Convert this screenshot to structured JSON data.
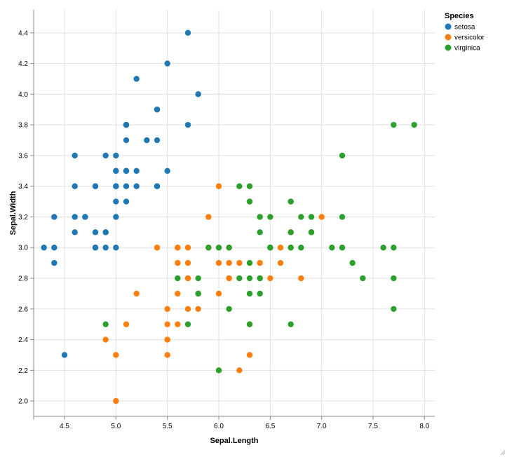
{
  "chart_data": {
    "type": "scatter",
    "xlabel": "Sepal.Length",
    "ylabel": "Sepal.Width",
    "xlim": [
      4.2,
      8.1
    ],
    "ylim": [
      1.9,
      4.55
    ],
    "xticks": [
      "4.5",
      "5.0",
      "5.5",
      "6.0",
      "6.5",
      "7.0",
      "7.5",
      "8.0"
    ],
    "yticks": [
      "2.0",
      "2.2",
      "2.4",
      "2.6",
      "2.8",
      "3.0",
      "3.2",
      "3.4",
      "3.6",
      "3.8",
      "4.0",
      "4.2",
      "4.4"
    ],
    "grid": true,
    "legend": {
      "title": "Species",
      "position": "top-right"
    },
    "series": [
      {
        "name": "setosa",
        "color": "#1f77b4",
        "points": [
          [
            5.1,
            3.5
          ],
          [
            4.9,
            3.0
          ],
          [
            4.7,
            3.2
          ],
          [
            4.6,
            3.1
          ],
          [
            5.0,
            3.6
          ],
          [
            5.4,
            3.9
          ],
          [
            4.6,
            3.4
          ],
          [
            5.0,
            3.4
          ],
          [
            4.4,
            2.9
          ],
          [
            4.9,
            3.1
          ],
          [
            5.4,
            3.7
          ],
          [
            4.8,
            3.4
          ],
          [
            4.8,
            3.0
          ],
          [
            4.3,
            3.0
          ],
          [
            5.8,
            4.0
          ],
          [
            5.7,
            4.4
          ],
          [
            5.4,
            3.9
          ],
          [
            5.1,
            3.5
          ],
          [
            5.7,
            3.8
          ],
          [
            5.1,
            3.8
          ],
          [
            5.4,
            3.4
          ],
          [
            5.1,
            3.7
          ],
          [
            4.6,
            3.6
          ],
          [
            5.1,
            3.3
          ],
          [
            4.8,
            3.4
          ],
          [
            5.0,
            3.0
          ],
          [
            5.0,
            3.4
          ],
          [
            5.2,
            3.5
          ],
          [
            5.2,
            3.4
          ],
          [
            4.7,
            3.2
          ],
          [
            4.8,
            3.1
          ],
          [
            5.4,
            3.4
          ],
          [
            5.2,
            4.1
          ],
          [
            5.5,
            4.2
          ],
          [
            4.9,
            3.1
          ],
          [
            5.0,
            3.2
          ],
          [
            5.5,
            3.5
          ],
          [
            4.9,
            3.6
          ],
          [
            4.4,
            3.0
          ],
          [
            5.1,
            3.4
          ],
          [
            5.0,
            3.5
          ],
          [
            4.5,
            2.3
          ],
          [
            4.4,
            3.2
          ],
          [
            5.0,
            3.5
          ],
          [
            5.1,
            3.8
          ],
          [
            4.8,
            3.0
          ],
          [
            5.1,
            3.8
          ],
          [
            4.6,
            3.2
          ],
          [
            5.3,
            3.7
          ],
          [
            5.0,
            3.3
          ]
        ]
      },
      {
        "name": "versicolor",
        "color": "#ff7f0e",
        "points": [
          [
            7.0,
            3.2
          ],
          [
            6.4,
            3.2
          ],
          [
            6.9,
            3.1
          ],
          [
            5.5,
            2.3
          ],
          [
            6.5,
            2.8
          ],
          [
            5.7,
            2.8
          ],
          [
            6.3,
            3.3
          ],
          [
            4.9,
            2.4
          ],
          [
            6.6,
            2.9
          ],
          [
            5.2,
            2.7
          ],
          [
            5.0,
            2.0
          ],
          [
            5.9,
            3.0
          ],
          [
            6.0,
            2.2
          ],
          [
            6.1,
            2.9
          ],
          [
            5.6,
            2.9
          ],
          [
            6.7,
            3.1
          ],
          [
            5.6,
            3.0
          ],
          [
            5.8,
            2.7
          ],
          [
            6.2,
            2.2
          ],
          [
            5.6,
            2.5
          ],
          [
            5.9,
            3.2
          ],
          [
            6.1,
            2.8
          ],
          [
            6.3,
            2.5
          ],
          [
            6.1,
            2.8
          ],
          [
            6.4,
            2.9
          ],
          [
            6.6,
            3.0
          ],
          [
            6.8,
            2.8
          ],
          [
            6.7,
            3.0
          ],
          [
            6.0,
            2.9
          ],
          [
            5.7,
            2.6
          ],
          [
            5.5,
            2.4
          ],
          [
            5.5,
            2.4
          ],
          [
            5.8,
            2.7
          ],
          [
            6.0,
            2.7
          ],
          [
            5.4,
            3.0
          ],
          [
            6.0,
            3.4
          ],
          [
            6.7,
            3.1
          ],
          [
            6.3,
            2.3
          ],
          [
            5.6,
            3.0
          ],
          [
            5.5,
            2.5
          ],
          [
            5.5,
            2.6
          ],
          [
            6.1,
            3.0
          ],
          [
            5.8,
            2.6
          ],
          [
            5.0,
            2.3
          ],
          [
            5.6,
            2.7
          ],
          [
            5.7,
            3.0
          ],
          [
            5.7,
            2.9
          ],
          [
            6.2,
            2.9
          ],
          [
            5.1,
            2.5
          ],
          [
            5.7,
            2.8
          ]
        ]
      },
      {
        "name": "virginica",
        "color": "#2ca02c",
        "points": [
          [
            6.3,
            3.3
          ],
          [
            5.8,
            2.7
          ],
          [
            7.1,
            3.0
          ],
          [
            6.3,
            2.9
          ],
          [
            6.5,
            3.0
          ],
          [
            7.6,
            3.0
          ],
          [
            4.9,
            2.5
          ],
          [
            7.3,
            2.9
          ],
          [
            6.7,
            2.5
          ],
          [
            7.2,
            3.6
          ],
          [
            6.5,
            3.2
          ],
          [
            6.4,
            2.7
          ],
          [
            6.8,
            3.0
          ],
          [
            5.7,
            2.5
          ],
          [
            5.8,
            2.8
          ],
          [
            6.4,
            3.2
          ],
          [
            6.5,
            3.0
          ],
          [
            7.7,
            3.8
          ],
          [
            7.7,
            2.6
          ],
          [
            6.0,
            2.2
          ],
          [
            6.9,
            3.2
          ],
          [
            5.6,
            2.8
          ],
          [
            7.7,
            2.8
          ],
          [
            6.3,
            2.7
          ],
          [
            6.7,
            3.3
          ],
          [
            7.2,
            3.2
          ],
          [
            6.2,
            2.8
          ],
          [
            6.1,
            3.0
          ],
          [
            6.4,
            2.8
          ],
          [
            7.2,
            3.0
          ],
          [
            7.4,
            2.8
          ],
          [
            7.9,
            3.8
          ],
          [
            6.4,
            2.8
          ],
          [
            6.3,
            2.8
          ],
          [
            6.1,
            2.6
          ],
          [
            7.7,
            3.0
          ],
          [
            6.3,
            3.4
          ],
          [
            6.4,
            3.1
          ],
          [
            6.0,
            3.0
          ],
          [
            6.9,
            3.1
          ],
          [
            6.7,
            3.1
          ],
          [
            6.9,
            3.1
          ],
          [
            5.8,
            2.7
          ],
          [
            6.8,
            3.2
          ],
          [
            6.7,
            3.3
          ],
          [
            6.7,
            3.0
          ],
          [
            6.3,
            2.5
          ],
          [
            6.5,
            3.0
          ],
          [
            6.2,
            3.4
          ],
          [
            5.9,
            3.0
          ]
        ]
      }
    ]
  }
}
